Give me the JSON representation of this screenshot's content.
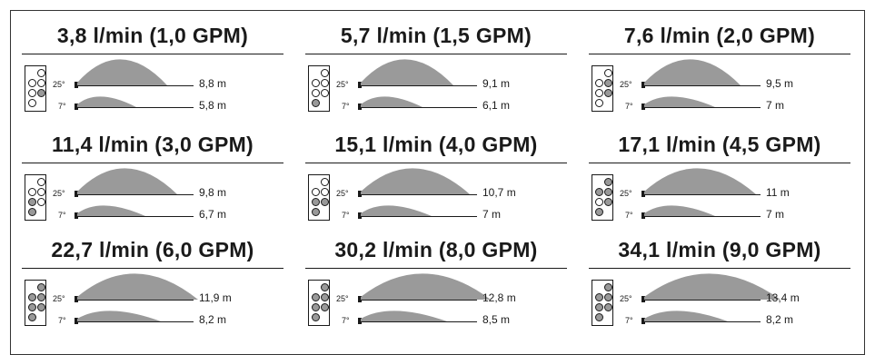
{
  "cells": [
    {
      "title": "3,8 l/min (1,0 GPM)",
      "holes": [
        0,
        0,
        0,
        0,
        1,
        0
      ],
      "high": {
        "angle": "25°",
        "dist": "8,8 m",
        "reach": 8.8
      },
      "low": {
        "angle": "7°",
        "dist": "5,8 m",
        "reach": 5.8
      }
    },
    {
      "title": "5,7 l/min (1,5 GPM)",
      "holes": [
        0,
        0,
        0,
        0,
        0,
        1
      ],
      "high": {
        "angle": "25°",
        "dist": "9,1 m",
        "reach": 9.1
      },
      "low": {
        "angle": "7°",
        "dist": "6,1 m",
        "reach": 6.1
      }
    },
    {
      "title": "7,6 l/min (2,0 GPM)",
      "holes": [
        0,
        0,
        1,
        0,
        1,
        0
      ],
      "high": {
        "angle": "25°",
        "dist": "9,5 m",
        "reach": 9.5
      },
      "low": {
        "angle": "7°",
        "dist": "7 m",
        "reach": 7.0
      }
    },
    {
      "title": "11,4 l/min (3,0 GPM)",
      "holes": [
        0,
        0,
        0,
        1,
        0,
        1
      ],
      "high": {
        "angle": "25°",
        "dist": "9,8 m",
        "reach": 9.8
      },
      "low": {
        "angle": "7°",
        "dist": "6,7 m",
        "reach": 6.7
      }
    },
    {
      "title": "15,1 l/min (4,0 GPM)",
      "holes": [
        0,
        0,
        0,
        1,
        1,
        1
      ],
      "high": {
        "angle": "25°",
        "dist": "10,7 m",
        "reach": 10.7
      },
      "low": {
        "angle": "7°",
        "dist": "7 m",
        "reach": 7.0
      }
    },
    {
      "title": "17,1 l/min (4,5 GPM)",
      "holes": [
        1,
        1,
        1,
        0,
        1,
        1
      ],
      "high": {
        "angle": "25°",
        "dist": "11 m",
        "reach": 11.0
      },
      "low": {
        "angle": "7°",
        "dist": "7 m",
        "reach": 7.0
      }
    },
    {
      "title": "22,7 l/min (6,0 GPM)",
      "holes": [
        1,
        1,
        1,
        1,
        1,
        1
      ],
      "high": {
        "angle": "25°",
        "dist": "11,9 m",
        "reach": 11.9
      },
      "low": {
        "angle": "7°",
        "dist": "8,2 m",
        "reach": 8.2
      }
    },
    {
      "title": "30,2 l/min (8,0 GPM)",
      "holes": [
        1,
        1,
        1,
        1,
        1,
        1
      ],
      "high": {
        "angle": "25°",
        "dist": "12,8 m",
        "reach": 12.8
      },
      "low": {
        "angle": "7°",
        "dist": "8,5 m",
        "reach": 8.5
      }
    },
    {
      "title": "34,1 l/min (9,0 GPM)",
      "holes": [
        1,
        1,
        1,
        1,
        1,
        1
      ],
      "high": {
        "angle": "25°",
        "dist": "13,4 m",
        "reach": 13.4
      },
      "low": {
        "angle": "7°",
        "dist": "8,2 m",
        "reach": 8.2
      }
    }
  ],
  "colors": {
    "spray": "#9a9a9a",
    "hole_open": "#ffffff",
    "hole_filled": "#999999",
    "line": "#1a1a1a"
  }
}
